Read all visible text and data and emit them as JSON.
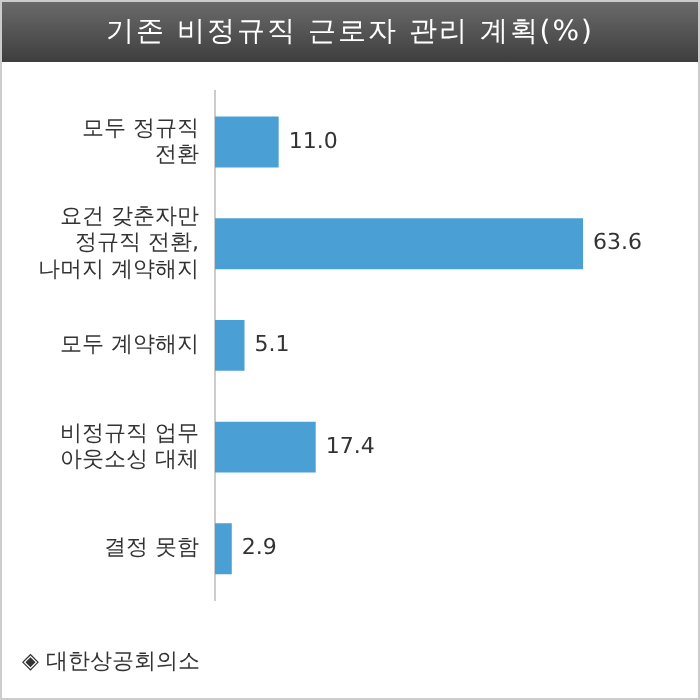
{
  "chart_data": {
    "type": "bar",
    "orientation": "horizontal",
    "title": "기존 비정규직 근로자 관리 계획(%)",
    "categories": [
      "모두 정규직\n전환",
      "요건 갖춘자만\n정규직 전환,\n나머지 계약해지",
      "모두 계약해지",
      "비정규직 업무\n아웃소싱 대체",
      "결정 못함"
    ],
    "values": [
      11.0,
      63.6,
      5.1,
      17.4,
      2.9
    ],
    "color": "#4a9fd5",
    "tick_labels": "y",
    "grid": false,
    "legend": false,
    "value_labels": [
      "11.0",
      "63.6",
      "5.1",
      "17.4",
      "2.9"
    ],
    "annotations": [
      "◈ 대한상공회의소"
    ]
  }
}
